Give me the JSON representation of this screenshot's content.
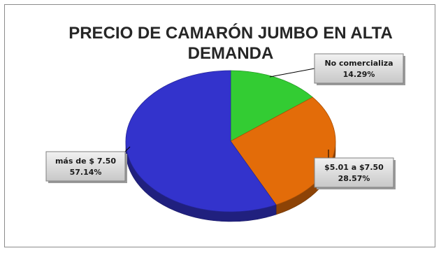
{
  "chart_data": {
    "type": "pie",
    "title_lines": [
      "PRECIO DE CAMARÓN JUMBO EN ALTA",
      "DEMANDA"
    ],
    "slices": [
      {
        "label": "No comercializa",
        "value": 14.29,
        "value_text": "14.29%",
        "color": "#33cc33"
      },
      {
        "label": "$5.01 a $7.50",
        "value": 28.57,
        "value_text": "28.57%",
        "color": "#e36c09"
      },
      {
        "label": "más de $ 7.50",
        "value": 57.14,
        "value_text": "57.14%",
        "color": "#3333cc"
      }
    ],
    "legend": "none"
  }
}
